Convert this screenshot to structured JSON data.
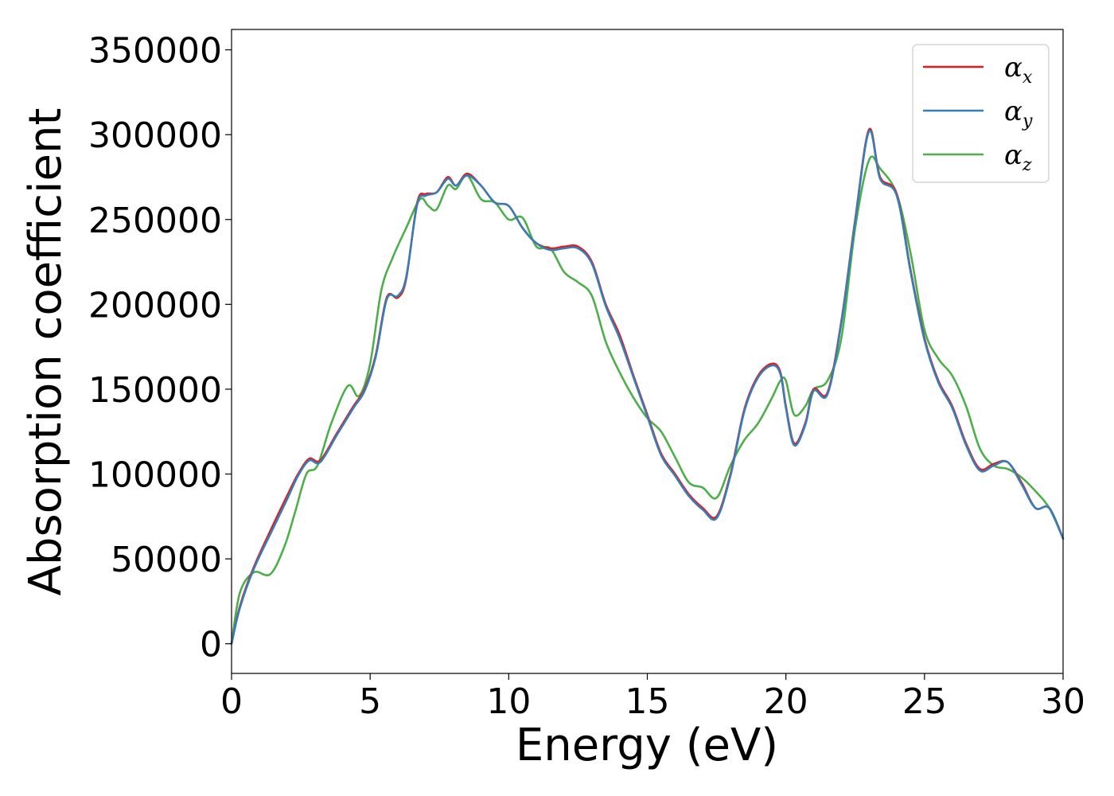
{
  "chart_data": {
    "type": "line",
    "xlabel": "Energy (eV)",
    "ylabel": "Absorption coefficient",
    "xlim": [
      0,
      30
    ],
    "ylim": [
      -17500,
      362000
    ],
    "xticks": [
      0,
      5,
      10,
      15,
      20,
      25,
      30
    ],
    "xtick_labels": [
      "0",
      "5",
      "10",
      "15",
      "20",
      "25",
      "30"
    ],
    "yticks": [
      0,
      50000,
      100000,
      150000,
      200000,
      250000,
      300000,
      350000
    ],
    "ytick_labels": [
      "0",
      "50000",
      "100000",
      "150000",
      "200000",
      "250000",
      "300000",
      "350000"
    ],
    "grid": false,
    "legend_position": "top-right",
    "series": [
      {
        "name": "α_x",
        "label_main": "α",
        "label_sub": "x",
        "color": "#e41a1c",
        "x": [
          0,
          0.3,
          0.8,
          1.5,
          2.0,
          2.4,
          2.8,
          3.2,
          3.8,
          4.4,
          4.8,
          5.2,
          5.6,
          6.0,
          6.3,
          6.7,
          7.0,
          7.4,
          7.8,
          8.1,
          8.5,
          9.0,
          9.5,
          10.0,
          10.5,
          11.0,
          11.5,
          12.0,
          12.5,
          13.0,
          13.5,
          14.0,
          14.5,
          15.0,
          15.5,
          16.0,
          16.5,
          17.0,
          17.5,
          18.0,
          18.5,
          19.0,
          19.5,
          19.8,
          20.0,
          20.3,
          20.7,
          21.0,
          21.5,
          22.0,
          22.5,
          23.0,
          23.4,
          24.0,
          24.5,
          25.0,
          25.5,
          26.0,
          26.5,
          27.0,
          27.5,
          28.0,
          28.5,
          29.0,
          29.5,
          30.0
        ],
        "y": [
          0,
          22000,
          45000,
          70000,
          87000,
          100000,
          109000,
          108000,
          124000,
          140000,
          150000,
          170000,
          204000,
          204000,
          215000,
          260000,
          265000,
          266000,
          275000,
          270000,
          277000,
          270000,
          260000,
          258000,
          245000,
          236000,
          233000,
          234000,
          234000,
          225000,
          200000,
          182000,
          158000,
          135000,
          112000,
          100000,
          88000,
          80000,
          75000,
          100000,
          138000,
          158000,
          165000,
          160000,
          140000,
          118000,
          130000,
          150000,
          148000,
          190000,
          250000,
          303000,
          275000,
          265000,
          220000,
          180000,
          155000,
          140000,
          118000,
          103000,
          106000,
          107000,
          95000,
          80000,
          80000,
          62000
        ]
      },
      {
        "name": "α_y",
        "label_main": "α",
        "label_sub": "y",
        "color": "#377eb8",
        "x": [
          0,
          0.3,
          0.8,
          1.5,
          2.0,
          2.4,
          2.8,
          3.2,
          3.8,
          4.4,
          4.8,
          5.2,
          5.6,
          6.0,
          6.3,
          6.7,
          7.0,
          7.4,
          7.8,
          8.1,
          8.5,
          9.0,
          9.5,
          10.0,
          10.5,
          11.0,
          11.5,
          12.0,
          12.5,
          13.0,
          13.5,
          14.0,
          14.5,
          15.0,
          15.5,
          16.0,
          16.5,
          17.0,
          17.5,
          18.0,
          18.5,
          19.0,
          19.5,
          19.8,
          20.0,
          20.3,
          20.7,
          21.0,
          21.5,
          22.0,
          22.5,
          23.0,
          23.4,
          24.0,
          24.5,
          25.0,
          25.5,
          26.0,
          26.5,
          27.0,
          27.5,
          28.0,
          28.5,
          29.0,
          29.5,
          30.0
        ],
        "y": [
          0,
          21000,
          44000,
          68000,
          85000,
          99000,
          108000,
          107000,
          123000,
          139000,
          149000,
          169000,
          203000,
          205000,
          216000,
          259000,
          264000,
          266000,
          274000,
          270000,
          276000,
          270000,
          260000,
          258000,
          245000,
          236000,
          232000,
          233000,
          233000,
          224000,
          199000,
          180000,
          157000,
          134000,
          111000,
          99000,
          87000,
          79000,
          74000,
          99000,
          137000,
          157000,
          164000,
          159000,
          139000,
          117000,
          129000,
          149000,
          147000,
          189000,
          249000,
          302000,
          274000,
          264000,
          219000,
          179000,
          154000,
          139000,
          117000,
          102000,
          105000,
          107000,
          94000,
          80000,
          80000,
          62000
        ]
      },
      {
        "name": "α_z",
        "label_main": "α",
        "label_sub": "z",
        "color": "#4daf4a",
        "x": [
          0,
          0.3,
          0.8,
          1.4,
          1.9,
          2.3,
          2.7,
          3.1,
          3.6,
          4.2,
          4.6,
          5.0,
          5.4,
          5.8,
          6.3,
          6.8,
          7.1,
          7.4,
          7.8,
          8.1,
          8.5,
          9.0,
          9.5,
          10.0,
          10.5,
          11.0,
          11.5,
          12.0,
          12.5,
          13.0,
          13.5,
          14.0,
          14.5,
          15.0,
          15.5,
          16.0,
          16.5,
          17.0,
          17.5,
          18.0,
          18.5,
          19.0,
          19.5,
          19.8,
          20.0,
          20.3,
          20.7,
          21.0,
          21.5,
          22.0,
          22.5,
          23.0,
          23.4,
          24.0,
          24.5,
          25.0,
          25.5,
          26.0,
          26.5,
          27.0,
          27.5,
          28.0,
          28.5,
          29.0,
          29.5,
          30.0
        ],
        "y": [
          0,
          30000,
          42000,
          41000,
          57000,
          78000,
          100000,
          105000,
          130000,
          152000,
          146000,
          165000,
          208000,
          227000,
          245000,
          262000,
          258000,
          256000,
          270000,
          268000,
          276000,
          262000,
          260000,
          250000,
          251000,
          234000,
          233000,
          219000,
          213000,
          205000,
          178000,
          160000,
          145000,
          133000,
          125000,
          110000,
          95000,
          92000,
          86000,
          105000,
          120000,
          130000,
          145000,
          155000,
          155000,
          135000,
          140000,
          150000,
          155000,
          180000,
          245000,
          285000,
          280000,
          265000,
          230000,
          185000,
          168000,
          158000,
          140000,
          115000,
          105000,
          103000,
          98000,
          90000,
          80000,
          62000
        ]
      }
    ]
  }
}
